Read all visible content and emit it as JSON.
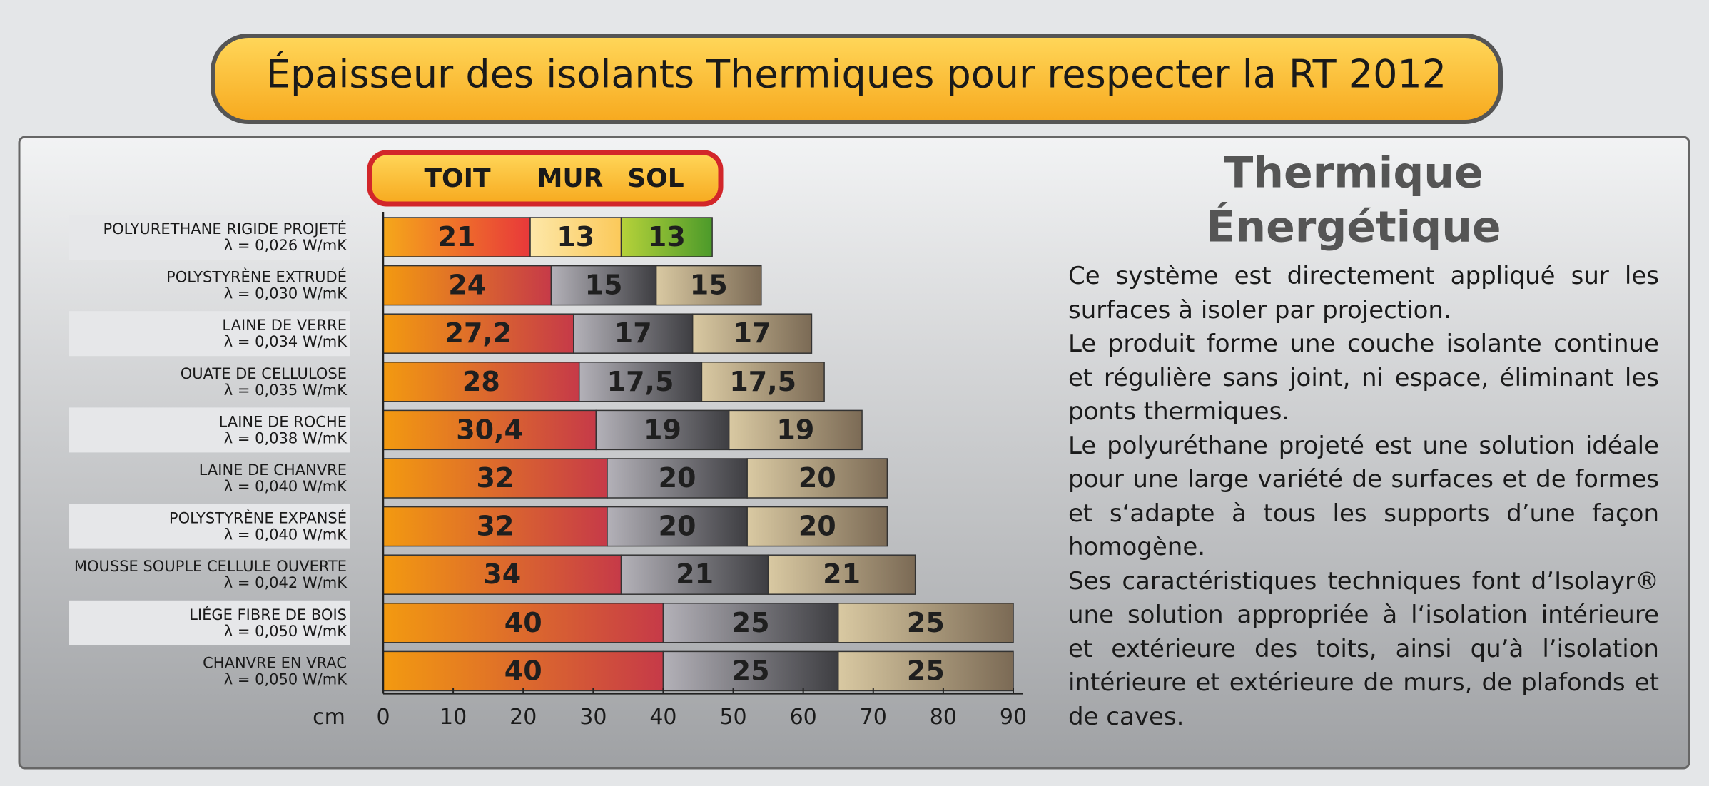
{
  "chart_data": {
    "type": "stacked_barh",
    "title": "Épaisseur  des isolants Thermiques pour respecter la RT 2012",
    "categories": [
      "POLYURETHANE RIGIDE PROJETÉ",
      "POLYSTYRÈNE EXTRUDÉ",
      "LAINE DE VERRE",
      "OUATE DE CELLULOSE",
      "LAINE DE ROCHE",
      "LAINE DE CHANVRE",
      "POLYSTYRÈNE EXPANSÉ",
      "MOUSSE SOUPLE CELLULE OUVERTE",
      "LIÉGE  FIBRE DE BOIS",
      "CHANVRE EN VRAC"
    ],
    "category_notes": [
      "λ =  0,026 W/mK",
      "λ = 0,030 W/mK",
      "λ = 0,034 W/mK",
      "λ = 0,035 W/mK",
      "λ =  0,038 W/mK",
      "λ = 0,040 W/mK",
      "λ = 0,040 W/mK",
      "λ = 0,042 W/mK",
      "λ = 0,050 W/mK",
      "λ =  0,050 W/mK"
    ],
    "series": [
      {
        "name": "TOIT",
        "gradient": [
          "#f39a10",
          "#c63a48"
        ],
        "first_gradient": [
          "#f5a81a",
          "#e8383a"
        ],
        "values": [
          21,
          24,
          27.2,
          28,
          30.4,
          32,
          32,
          34,
          40,
          40
        ],
        "value_labels": [
          "21",
          "24",
          "27,2",
          "28",
          "30,4",
          "32",
          "32",
          "34",
          "40",
          "40"
        ]
      },
      {
        "name": "MUR",
        "gradient": [
          "#b3b1b8",
          "#3e3e42"
        ],
        "first_gradient": [
          "#fde7a8",
          "#fbc95a"
        ],
        "values": [
          13,
          15,
          17,
          17.5,
          19,
          20,
          20,
          21,
          25,
          25
        ],
        "value_labels": [
          "13",
          "15",
          "17",
          "17,5",
          "19",
          "20",
          "20",
          "21",
          "25",
          "25"
        ]
      },
      {
        "name": "SOL",
        "gradient": [
          "#d9c9a2",
          "#7b6a55"
        ],
        "first_gradient": [
          "#b6d23a",
          "#4c9a2a"
        ],
        "values": [
          13,
          15,
          17,
          17.5,
          19,
          20,
          20,
          21,
          25,
          25
        ],
        "value_labels": [
          "13",
          "15",
          "17",
          "17,5",
          "19",
          "20",
          "20",
          "21",
          "25",
          "25"
        ]
      }
    ],
    "xlabel": "cm",
    "xlim": [
      0,
      90
    ],
    "xticks": [
      0,
      10,
      20,
      30,
      40,
      50,
      60,
      70,
      80,
      90
    ]
  },
  "side_panel": {
    "title_lines": [
      "Thermique",
      "Énergétique"
    ],
    "paragraphs": [
      "Ce système est directement appliqué sur les surfaces à isoler par projection.",
      "Le produit forme une couche isolante continue et régulière sans joint, ni espace, éliminant les ponts thermiques.",
      "Le polyuréthane projeté est une solution idéale pour une large variété de surfaces et de formes et s‘adapte à tous les supports d’une façon homogène.",
      "Ses caractéristiques techniques font d’Isolayr® une solution appropriée à l‘isolation intérieure et extérieure des toits, ainsi qu’à l’isolation intérieure et extérieure de murs, de plafonds et de caves."
    ]
  }
}
